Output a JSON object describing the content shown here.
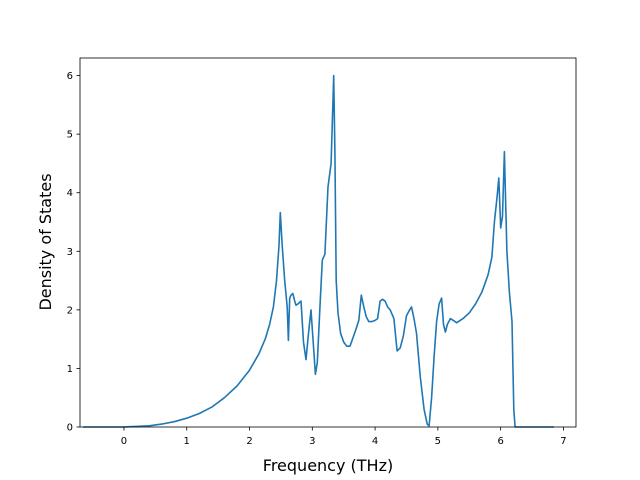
{
  "chart_data": {
    "type": "line",
    "title": "",
    "xlabel": "Frequency (THz)",
    "ylabel": "Density of States",
    "xlim": [
      -0.7,
      7.2
    ],
    "ylim": [
      0,
      6.3
    ],
    "xticks": [
      0,
      1,
      2,
      3,
      4,
      5,
      6,
      7
    ],
    "yticks": [
      0,
      1,
      2,
      3,
      4,
      5,
      6
    ],
    "grid": false,
    "line_color": "#1f77b4",
    "series": [
      {
        "x": [
          -0.65,
          -0.3,
          0.0,
          0.2,
          0.4,
          0.6,
          0.8,
          1.0,
          1.2,
          1.4,
          1.6,
          1.8,
          2.0,
          2.15,
          2.25,
          2.32,
          2.38,
          2.43,
          2.47,
          2.49,
          2.52,
          2.56,
          2.6,
          2.62,
          2.64,
          2.66,
          2.69,
          2.72,
          2.74,
          2.77,
          2.82,
          2.86,
          2.9,
          2.94,
          2.98,
          3.02,
          3.05,
          3.08,
          3.12,
          3.16,
          3.2,
          3.25,
          3.3,
          3.34,
          3.36,
          3.38,
          3.41,
          3.45,
          3.5,
          3.55,
          3.6,
          3.64,
          3.69,
          3.74,
          3.78,
          3.82,
          3.86,
          3.9,
          3.95,
          4.0,
          4.04,
          4.08,
          4.12,
          4.16,
          4.2,
          4.24,
          4.3,
          4.35,
          4.4,
          4.45,
          4.5,
          4.55,
          4.58,
          4.62,
          4.66,
          4.72,
          4.78,
          4.83,
          4.86,
          4.9,
          4.94,
          4.98,
          5.02,
          5.06,
          5.09,
          5.12,
          5.15,
          5.2,
          5.3,
          5.4,
          5.5,
          5.6,
          5.7,
          5.8,
          5.86,
          5.9,
          5.94,
          5.97,
          6.0,
          6.03,
          6.06,
          6.08,
          6.1,
          6.14,
          6.18,
          6.21,
          6.23,
          6.5,
          6.85
        ],
        "y": [
          0.0,
          0.0,
          0.0,
          0.01,
          0.02,
          0.05,
          0.09,
          0.15,
          0.23,
          0.34,
          0.5,
          0.7,
          0.97,
          1.25,
          1.5,
          1.75,
          2.05,
          2.5,
          3.1,
          3.66,
          3.1,
          2.5,
          2.05,
          1.48,
          2.2,
          2.25,
          2.28,
          2.15,
          2.08,
          2.1,
          2.15,
          1.45,
          1.15,
          1.6,
          2.0,
          1.35,
          0.9,
          1.1,
          2.0,
          2.85,
          2.95,
          4.1,
          4.5,
          6.0,
          4.7,
          2.5,
          1.95,
          1.6,
          1.45,
          1.38,
          1.38,
          1.5,
          1.65,
          1.82,
          2.25,
          2.05,
          1.88,
          1.8,
          1.8,
          1.82,
          1.85,
          2.15,
          2.18,
          2.15,
          2.05,
          2.0,
          1.85,
          1.3,
          1.35,
          1.55,
          1.9,
          2.0,
          2.05,
          1.85,
          1.6,
          0.85,
          0.3,
          0.05,
          0.02,
          0.5,
          1.2,
          1.8,
          2.1,
          2.2,
          1.75,
          1.62,
          1.75,
          1.85,
          1.78,
          1.85,
          1.95,
          2.1,
          2.3,
          2.6,
          2.9,
          3.5,
          3.9,
          4.25,
          3.4,
          3.6,
          4.7,
          3.8,
          3.0,
          2.3,
          1.8,
          0.3,
          0.0,
          0.0,
          0.0
        ]
      }
    ]
  }
}
